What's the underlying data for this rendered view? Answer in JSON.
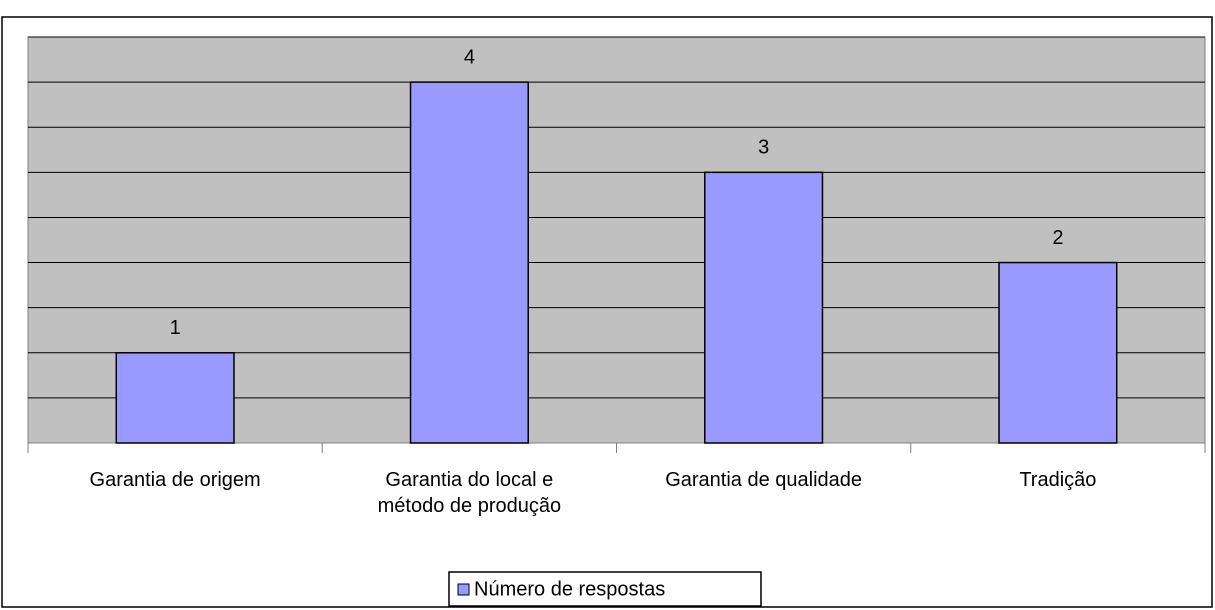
{
  "chart_data": {
    "type": "bar",
    "categories": [
      "Garantia de origem",
      "Garantia do local e método de produção",
      "Garantia de qualidade",
      "Tradição"
    ],
    "series": [
      {
        "name": "Número de respostas",
        "color": "#9999ff",
        "values": [
          1,
          4,
          3,
          2
        ]
      }
    ],
    "ylim": [
      0,
      4.5
    ],
    "yticks": [
      0,
      0.5,
      1,
      1.5,
      2,
      2.5,
      3,
      3.5,
      4,
      4.5
    ],
    "grid": true,
    "legend": "bottom"
  }
}
